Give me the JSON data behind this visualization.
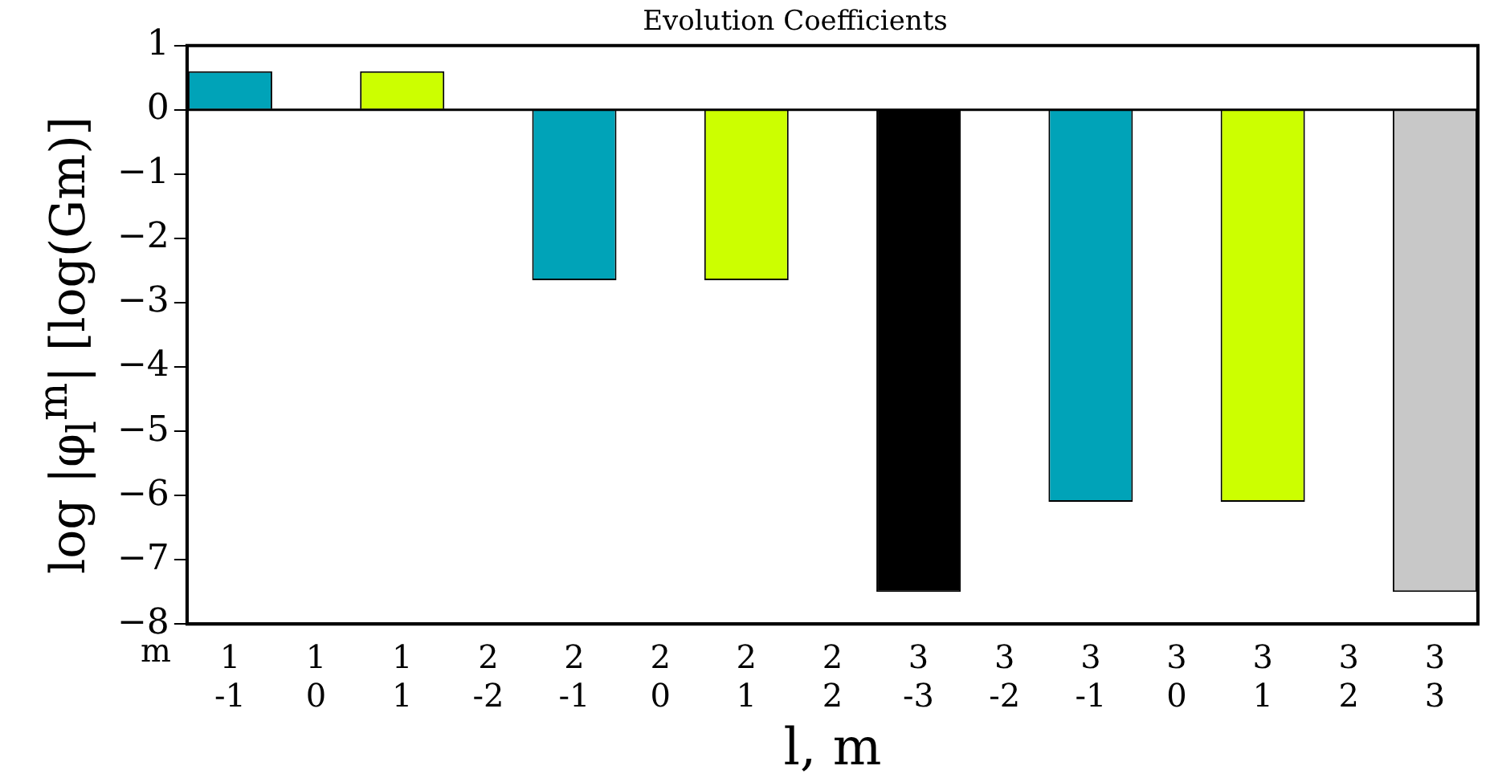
{
  "chart_data": {
    "type": "bar",
    "title": "Evolution Coefficients",
    "xlabel": "l, m",
    "ylabel": "log |φ$_{l}$$^{m}$| [log(Gm)]",
    "categories": [
      "1\n-1",
      "1\n0",
      "1\n1",
      "2\n-2",
      "2\n-1",
      "2\n0",
      "2\n1",
      "2\n2",
      "3\n-3",
      "3\n-2",
      "3\n-1",
      "3\n0",
      "3\n1",
      "3\n2",
      "3\n3"
    ],
    "values": [
      0.6,
      0,
      0.6,
      0,
      -2.65,
      0,
      -2.65,
      0,
      -7.5,
      0,
      -6.1,
      0,
      -6.1,
      0,
      -7.5
    ],
    "colors": [
      "#00a3b8",
      "#00a3b8",
      "#ccff00",
      "#ccff00",
      "#00a3b8",
      "#00a3b8",
      "#ccff00",
      "#ccff00",
      "#000000",
      "#00a3b8",
      "#00a3b8",
      "#00a3b8",
      "#ccff00",
      "#ccff00",
      "#c8c8c8"
    ],
    "ylim": [
      -8,
      1
    ],
    "yticks": [
      {
        "value": -8,
        "label": "−8"
      },
      {
        "value": -7,
        "label": "−7"
      },
      {
        "value": -6,
        "label": "−6"
      },
      {
        "value": -5,
        "label": "−5"
      },
      {
        "value": -4,
        "label": "−4"
      },
      {
        "value": -3,
        "label": "−3"
      },
      {
        "value": -2,
        "label": "−2"
      },
      {
        "value": -1,
        "label": "−1"
      },
      0,
      1
    ],
    "annotations": [
      "m"
    ],
    "ref_lines": [
      {
        "axis": "y",
        "value": 0,
        "color": "#000000"
      }
    ],
    "grid": false,
    "legend": false
  }
}
